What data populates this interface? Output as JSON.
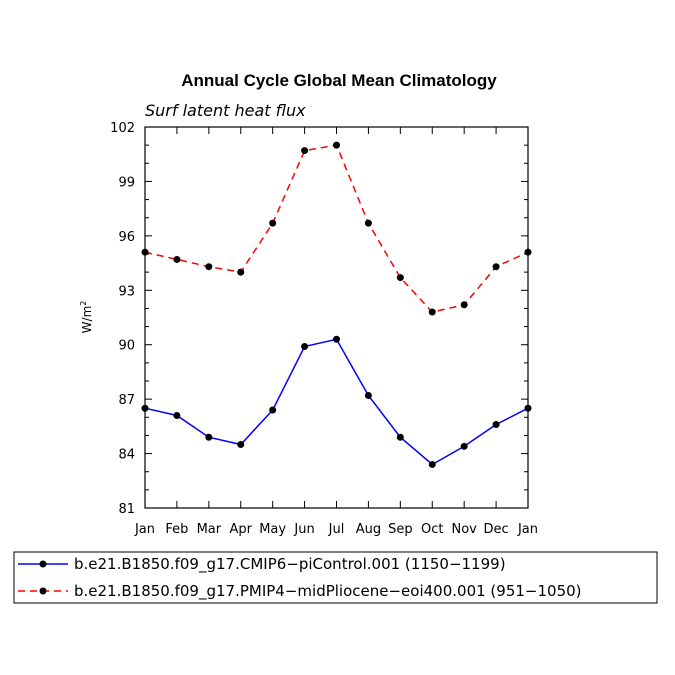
{
  "chart_data": {
    "type": "line",
    "title": "Annual Cycle Global Mean Climatology",
    "subtitle": "Surf latent heat flux",
    "xlabel": "",
    "ylabel_base": "W/m",
    "ylabel_sup": "2",
    "categories": [
      "Jan",
      "Feb",
      "Mar",
      "Apr",
      "May",
      "Jun",
      "Jul",
      "Aug",
      "Sep",
      "Oct",
      "Nov",
      "Dec",
      "Jan"
    ],
    "ylim": [
      81,
      102
    ],
    "yticks": [
      81,
      84,
      87,
      90,
      93,
      96,
      99,
      102
    ],
    "yminor_step": 1,
    "grid": false,
    "legend_position": "bottom",
    "series": [
      {
        "name": "b.e21.B1850.f09_g17.CMIP6−piControl.001 (1150−1199)",
        "color": "#0000ff",
        "dash": "solid",
        "marker": "filled-circle",
        "values": [
          86.5,
          86.1,
          84.9,
          84.5,
          86.4,
          89.9,
          90.3,
          87.2,
          84.9,
          83.4,
          84.4,
          85.6,
          86.5
        ]
      },
      {
        "name": "b.e21.B1850.f09_g17.PMIP4−midPliocene−eoi400.001 (951−1050)",
        "color": "#ff0000",
        "dash": "dashed",
        "marker": "filled-circle",
        "values": [
          95.1,
          94.7,
          94.3,
          94.0,
          96.7,
          100.7,
          101.0,
          96.7,
          93.7,
          91.8,
          92.2,
          94.3,
          95.1
        ]
      }
    ]
  }
}
